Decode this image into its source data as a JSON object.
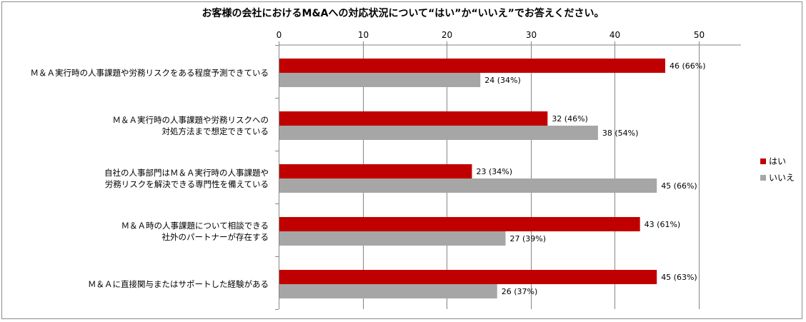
{
  "chart_data": {
    "type": "bar",
    "orientation": "horizontal",
    "title": "お客様の会社におけるM&Aへの対応状況について“はい”か“いいえ”でお答えください。",
    "categories": [
      [
        "Ｍ＆Ａ実行時の人事課題や労務リスクをある程度予測できている"
      ],
      [
        "Ｍ＆Ａ実行時の人事課題や労務リスクへの",
        "対処方法まで想定できている"
      ],
      [
        "自社の人事部門はＭ＆Ａ実行時の人事課題や",
        "労務リスクを解決できる専門性を備えている"
      ],
      [
        "Ｍ＆Ａ時の人事課題について相談できる",
        "社外のパートナーが存在する"
      ],
      [
        "Ｍ＆Ａに直接関与またはサポートした経験がある"
      ]
    ],
    "series": [
      {
        "name": "はい",
        "color": "#c00000",
        "values": [
          46,
          32,
          23,
          43,
          45
        ],
        "labels": [
          "46 (66%)",
          "32 (46%)",
          "23 (34%)",
          "43 (61%)",
          "45 (63%)"
        ]
      },
      {
        "name": "いいえ",
        "color": "#a6a6a6",
        "values": [
          24,
          38,
          45,
          27,
          26
        ],
        "labels": [
          "24 (34%)",
          "38 (54%)",
          "45 (66%)",
          "27 (39%)",
          "26 (37%)"
        ]
      }
    ],
    "xlim": [
      0,
      55
    ],
    "xticks": [
      0,
      10,
      20,
      30,
      40,
      50
    ],
    "grid": true,
    "legend_position": "right"
  }
}
